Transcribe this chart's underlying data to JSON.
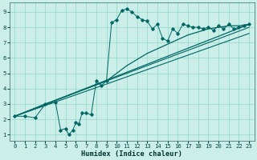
{
  "xlabel": "Humidex (Indice chaleur)",
  "bg_color": "#cceee8",
  "grid_color": "#99ddcc",
  "line_color": "#006666",
  "xlim": [
    -0.5,
    23.5
  ],
  "ylim": [
    0.6,
    9.6
  ],
  "xticks": [
    0,
    1,
    2,
    3,
    4,
    5,
    6,
    7,
    8,
    9,
    10,
    11,
    12,
    13,
    14,
    15,
    16,
    17,
    18,
    19,
    20,
    21,
    22,
    23
  ],
  "yticks": [
    1,
    2,
    3,
    4,
    5,
    6,
    7,
    8,
    9
  ],
  "main_x": [
    0,
    1,
    2,
    3,
    4,
    4.5,
    5,
    5.3,
    5.7,
    6,
    6.3,
    6.6,
    7,
    7.5,
    8,
    8.5,
    9,
    9.5,
    10,
    10.5,
    11,
    11.5,
    12,
    12.5,
    13,
    13.5,
    14,
    14.5,
    15,
    15.5,
    16,
    16.5,
    17,
    17.5,
    18,
    18.5,
    19,
    19.5,
    20,
    20.5,
    21,
    21.5,
    22,
    22.5,
    23
  ],
  "main_y": [
    2.2,
    2.2,
    2.1,
    3.0,
    3.1,
    1.3,
    1.4,
    1.0,
    1.3,
    1.8,
    1.7,
    2.4,
    2.4,
    2.3,
    4.5,
    4.2,
    4.5,
    8.3,
    8.5,
    9.1,
    9.2,
    9.0,
    8.7,
    8.5,
    8.4,
    7.9,
    8.2,
    7.3,
    7.1,
    7.9,
    7.6,
    8.2,
    8.1,
    8.0,
    8.0,
    7.9,
    8.0,
    7.8,
    8.1,
    7.9,
    8.2,
    7.9,
    8.0,
    8.1,
    8.2
  ],
  "curve1_x": [
    0,
    3,
    9,
    10,
    11,
    12,
    13,
    14,
    15,
    16,
    17,
    18,
    19,
    20,
    21,
    22,
    23
  ],
  "curve1_y": [
    2.2,
    3.0,
    4.5,
    5.0,
    5.5,
    5.9,
    6.3,
    6.6,
    6.9,
    7.2,
    7.5,
    7.7,
    7.9,
    8.0,
    8.1,
    8.1,
    8.2
  ],
  "line2_x": [
    0,
    23
  ],
  "line2_y": [
    2.2,
    8.2
  ],
  "line3_x": [
    0,
    9,
    23
  ],
  "line3_y": [
    2.2,
    4.5,
    8.0
  ],
  "line4_x": [
    0,
    9,
    23
  ],
  "line4_y": [
    2.2,
    4.3,
    7.6
  ]
}
